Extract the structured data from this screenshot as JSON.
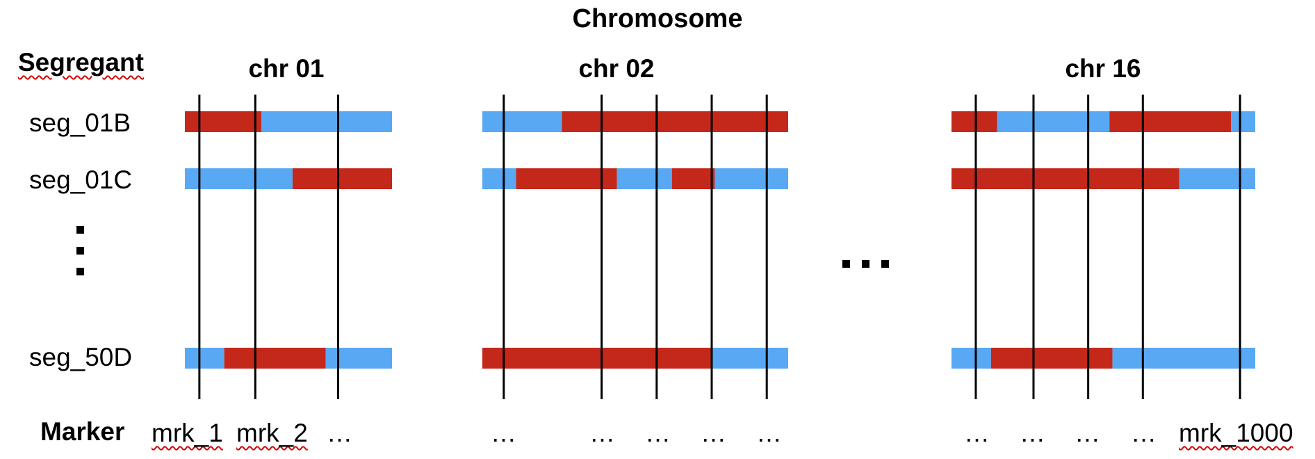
{
  "title": "Chromosome",
  "segregant_header": "Segregant",
  "marker_header": "Marker",
  "colors": {
    "allele_a": "#c4281b",
    "allele_b": "#58a8f4",
    "marker_line": "#000000"
  },
  "segregants": [
    "seg_01B",
    "seg_01C",
    "seg_50D"
  ],
  "chromosomes": [
    {
      "name": "chr 01",
      "markers": [
        0.07,
        0.34,
        0.74
      ],
      "tracks": [
        [
          {
            "a": "allele_a",
            "start": 0.0,
            "end": 0.37
          },
          {
            "a": "allele_b",
            "start": 0.37,
            "end": 1.0
          }
        ],
        [
          {
            "a": "allele_b",
            "start": 0.0,
            "end": 0.52
          },
          {
            "a": "allele_a",
            "start": 0.52,
            "end": 1.0
          }
        ],
        [
          {
            "a": "allele_b",
            "start": 0.0,
            "end": 0.19
          },
          {
            "a": "allele_a",
            "start": 0.19,
            "end": 0.68
          },
          {
            "a": "allele_b",
            "start": 0.68,
            "end": 1.0
          }
        ]
      ],
      "marker_labels": [
        "mrk_1",
        "mrk_2",
        "…"
      ]
    },
    {
      "name": "chr 02",
      "markers": [
        0.07,
        0.39,
        0.57,
        0.75,
        0.93
      ],
      "tracks": [
        [
          {
            "a": "allele_b",
            "start": 0.0,
            "end": 0.26
          },
          {
            "a": "allele_a",
            "start": 0.26,
            "end": 1.0
          }
        ],
        [
          {
            "a": "allele_b",
            "start": 0.0,
            "end": 0.11
          },
          {
            "a": "allele_a",
            "start": 0.11,
            "end": 0.44
          },
          {
            "a": "allele_b",
            "start": 0.44,
            "end": 0.62
          },
          {
            "a": "allele_a",
            "start": 0.62,
            "end": 0.76
          },
          {
            "a": "allele_b",
            "start": 0.76,
            "end": 1.0
          }
        ],
        [
          {
            "a": "allele_a",
            "start": 0.0,
            "end": 0.75
          },
          {
            "a": "allele_b",
            "start": 0.75,
            "end": 1.0
          }
        ]
      ],
      "marker_labels": [
        "…",
        "…",
        "…",
        "…",
        "…"
      ]
    },
    {
      "name": "chr 16",
      "markers": [
        0.08,
        0.27,
        0.45,
        0.63,
        0.95
      ],
      "tracks": [
        [
          {
            "a": "allele_a",
            "start": 0.0,
            "end": 0.15
          },
          {
            "a": "allele_b",
            "start": 0.15,
            "end": 0.52
          },
          {
            "a": "allele_a",
            "start": 0.52,
            "end": 0.92
          },
          {
            "a": "allele_b",
            "start": 0.92,
            "end": 1.0
          }
        ],
        [
          {
            "a": "allele_a",
            "start": 0.0,
            "end": 0.75
          },
          {
            "a": "allele_b",
            "start": 0.75,
            "end": 1.0
          }
        ],
        [
          {
            "a": "allele_b",
            "start": 0.0,
            "end": 0.13
          },
          {
            "a": "allele_a",
            "start": 0.13,
            "end": 0.53
          },
          {
            "a": "allele_b",
            "start": 0.53,
            "end": 1.0
          }
        ]
      ],
      "marker_labels": [
        "…",
        "…",
        "…",
        "…",
        "mrk_1000"
      ]
    }
  ]
}
